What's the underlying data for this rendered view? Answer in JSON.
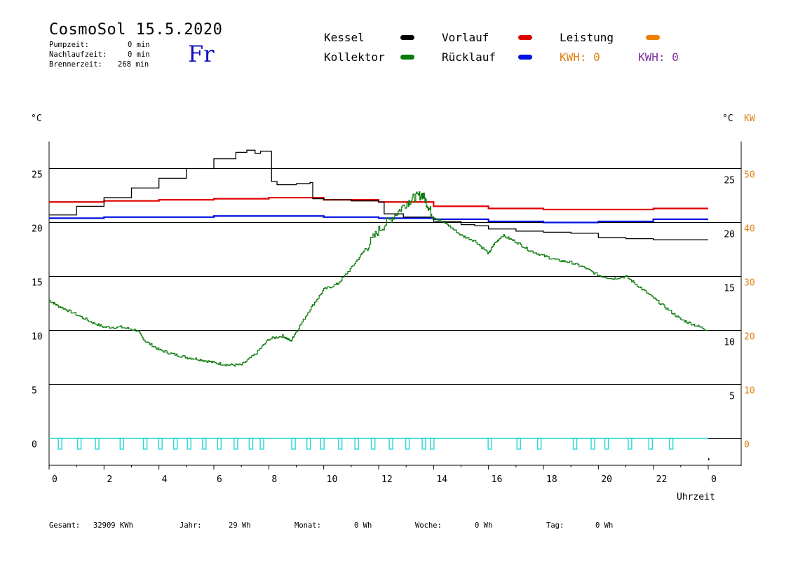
{
  "header": {
    "title": "CosmoSol 15.5.2020",
    "day": "Fr",
    "pumpzeit_label": "Pumpzeit:",
    "pumpzeit_value": "0 min",
    "nachlauf_label": "Nachlaufzeit:",
    "nachlauf_value": "0 min",
    "brenner_label": "Brennerzeit:",
    "brenner_value": "268 min"
  },
  "legend": {
    "kessel": "Kessel",
    "kollektor": "Kollektor",
    "vorlauf": "Vorlauf",
    "ruecklauf": "Rücklauf",
    "leistung": "Leistung",
    "kwh1": "KWH: 0",
    "kwh2": "KWH: 0"
  },
  "colors": {
    "kessel": "#000000",
    "kollektor": "#0a7a0a",
    "vorlauf": "#e00000",
    "ruecklauf": "#0010e0",
    "leistung": "#f08000",
    "kwh2": "#8030a0",
    "pump": "#30d8d8"
  },
  "footer": {
    "gesamt_label": "Gesamt:",
    "gesamt_value": "32909 KWh",
    "jahr_label": "Jahr:",
    "jahr_value": "29 Wh",
    "monat_label": "Monat:",
    "monat_value": "0 Wh",
    "woche_label": "Woche:",
    "woche_value": "0 Wh",
    "tag_label": "Tag:",
    "tag_value": "0 Wh"
  },
  "chart_data": {
    "type": "line",
    "xlabel": "Uhrzeit",
    "ylabel_left": "°C",
    "ylabel_right_temp": "°C",
    "ylabel_right_power": "KW",
    "xlim": [
      0,
      24
    ],
    "ylim": [
      -2.5,
      27.5
    ],
    "grid": true,
    "x_ticks": [
      "0",
      "2",
      "4",
      "6",
      "8",
      "10",
      "12",
      "14",
      "16",
      "18",
      "20",
      "22",
      "0"
    ],
    "y_ticks_left": [
      "0",
      "5",
      "10",
      "15",
      "20",
      "25"
    ],
    "y_ticks_right_temp": [
      "5",
      "10",
      "15",
      "20",
      "25"
    ],
    "y_ticks_right_power": [
      "0",
      "10",
      "20",
      "30",
      "40",
      "50"
    ],
    "series": [
      {
        "name": "Kessel",
        "x": [
          0,
          1,
          2,
          3,
          4,
          5,
          6,
          6.8,
          7.2,
          7.5,
          7.7,
          8.0,
          8.1,
          8.3,
          9.0,
          9.5,
          9.6,
          10,
          11,
          12,
          12.2,
          12.9,
          13.5,
          14,
          15,
          15.5,
          16,
          17,
          18,
          19,
          20,
          21,
          22,
          23,
          24
        ],
        "values": [
          20.7,
          21.5,
          22.3,
          23.2,
          24.1,
          25.0,
          25.9,
          26.5,
          26.7,
          26.4,
          26.6,
          26.6,
          23.8,
          23.5,
          23.6,
          23.7,
          22.2,
          22.1,
          22.0,
          21.9,
          20.8,
          20.5,
          20.5,
          20.1,
          19.8,
          19.7,
          19.4,
          19.2,
          19.1,
          19.0,
          18.6,
          18.5,
          18.4,
          18.4,
          18.4
        ]
      },
      {
        "name": "Kollektor",
        "x": [
          0,
          0.3,
          0.8,
          1.5,
          2.0,
          2.6,
          3.2,
          3.5,
          4.0,
          4.5,
          5.0,
          5.5,
          6.0,
          6.5,
          7.0,
          7.5,
          8.0,
          8.5,
          8.8,
          9.0,
          9.5,
          10.0,
          10.5,
          11.0,
          11.5,
          12.0,
          12.5,
          13.0,
          13.3,
          13.6,
          13.8,
          14.0,
          14.5,
          15.0,
          15.5,
          16.0,
          16.2,
          16.5,
          17.0,
          17.5,
          18.0,
          18.5,
          19.0,
          19.5,
          20.0,
          20.5,
          21.0,
          21.5,
          22.0,
          22.5,
          23.0,
          23.5,
          24.0
        ],
        "values": [
          12.8,
          12.3,
          11.7,
          10.8,
          10.3,
          10.3,
          10.0,
          9.0,
          8.2,
          7.8,
          7.5,
          7.3,
          7.0,
          6.8,
          6.8,
          7.8,
          9.2,
          9.5,
          9.0,
          9.9,
          12.0,
          13.8,
          14.3,
          15.8,
          17.5,
          19.3,
          20.5,
          21.8,
          22.3,
          22.6,
          21.5,
          20.5,
          19.8,
          18.8,
          18.3,
          17.1,
          18.0,
          18.8,
          18.2,
          17.4,
          16.9,
          16.5,
          16.3,
          15.8,
          15.1,
          14.8,
          15.0,
          14.0,
          13.0,
          12.0,
          11.0,
          10.5,
          10.0
        ]
      },
      {
        "name": "Vorlauf",
        "x": [
          0,
          2,
          4,
          6,
          8,
          10,
          12,
          14,
          16,
          18,
          20,
          22,
          24
        ],
        "values": [
          21.9,
          22.0,
          22.1,
          22.2,
          22.3,
          22.1,
          21.9,
          21.5,
          21.3,
          21.2,
          21.2,
          21.3,
          21.3
        ]
      },
      {
        "name": "Rücklauf",
        "x": [
          0,
          2,
          4,
          6,
          8,
          10,
          12,
          14,
          16,
          18,
          20,
          22,
          24
        ],
        "values": [
          20.4,
          20.5,
          20.5,
          20.6,
          20.6,
          20.5,
          20.4,
          20.3,
          20.1,
          20.0,
          20.1,
          20.3,
          20.3
        ]
      },
      {
        "name": "Pumpe",
        "x": [
          0.4,
          1.1,
          1.75,
          2.65,
          3.5,
          4.05,
          4.6,
          5.1,
          5.65,
          6.2,
          6.8,
          7.35,
          7.75,
          8.9,
          9.45,
          9.95,
          10.6,
          11.2,
          11.8,
          12.45,
          13.05,
          13.65,
          13.95,
          16.05,
          17.1,
          17.85,
          19.15,
          19.8,
          20.3,
          21.15,
          21.9,
          22.65
        ],
        "values": [
          1,
          1,
          1,
          1,
          1,
          1,
          1,
          1,
          1,
          1,
          1,
          1,
          1,
          1,
          1,
          1,
          1,
          1,
          1,
          1,
          1,
          1,
          1,
          1,
          1,
          1,
          1,
          1,
          1,
          1,
          1,
          1
        ]
      }
    ]
  }
}
